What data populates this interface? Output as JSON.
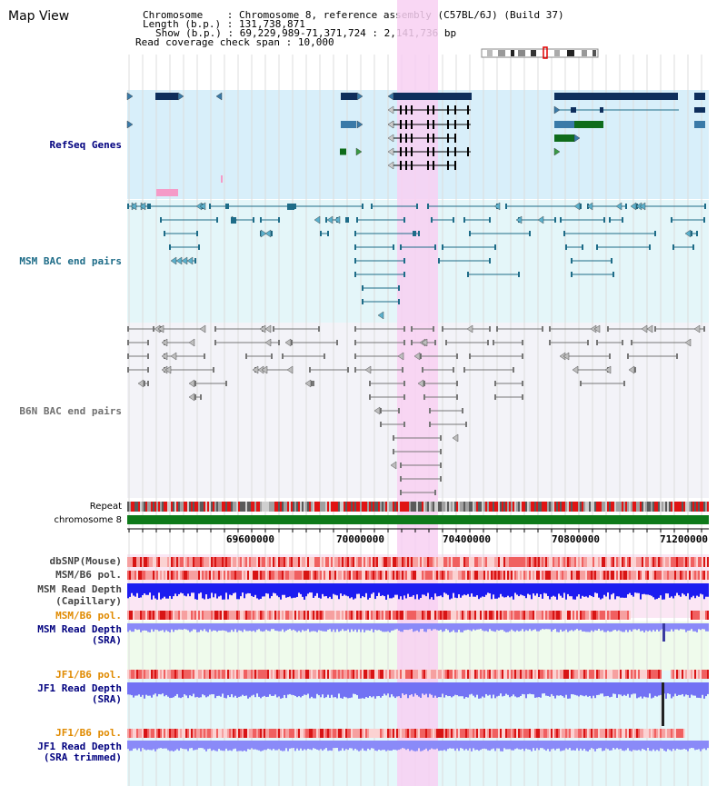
{
  "app": {
    "view_title": "Map View"
  },
  "info": {
    "chromosome_label": "Chromosome",
    "chromosome_value": "Chromosome 8, reference assembly (C57BL/6J) (Build 37)",
    "length_label": "Length (b.p.)",
    "length_value": "131,738,871",
    "show_label": "Show (b.p.)",
    "show_value": "69,229,989-71,371,724 : 2,141,736 bp",
    "coverage_label": "Read coverage check span",
    "coverage_value": "10,000"
  },
  "tracks": {
    "refseq": "RefSeq Genes",
    "msm_bac": "MSM BAC end pairs",
    "b6n_bac": "B6N BAC end pairs",
    "repeat": "Repeat",
    "chromosome": "chromosome 8",
    "dbsnp": "dbSNP(Mouse)",
    "msm_b6_pol_cap": "MSM/B6 pol.",
    "msm_depth_cap_1": "MSM Read Depth",
    "msm_depth_cap_2": "(Capillary)",
    "msm_b6_pol_sra": "MSM/B6 pol.",
    "msm_depth_sra_1": "MSM Read Depth",
    "msm_depth_sra_2": "(SRA)",
    "jf1_b6_pol_sra": "JF1/B6 pol.",
    "jf1_depth_sra_1": "JF1 Read Depth",
    "jf1_depth_sra_2": "(SRA)",
    "jf1_b6_pol_trim": "JF1/B6 pol.",
    "jf1_depth_trim_1": "JF1 Read Depth",
    "jf1_depth_trim_2": "(SRA trimmed)"
  },
  "axis": {
    "ticks": [
      "69600000",
      "70000000",
      "70400000",
      "70800000",
      "71200000"
    ]
  },
  "colors": {
    "refseq_bg": "#d8effa",
    "msm_bg": "#e4f6f9",
    "b6n_bg": "#f3f3f8",
    "highlight": "#f8d0f2",
    "gene_dark": "#0e2e5c",
    "gene_green": "#0f6c1a",
    "bac_teal": "#1e6c88",
    "bac_grey": "#666666",
    "chromosome_bar": "#0e7a1a",
    "msm_label": "#00007f",
    "jf1_pol_label": "#e08a00",
    "depth_blue": "#2b2bff"
  }
}
